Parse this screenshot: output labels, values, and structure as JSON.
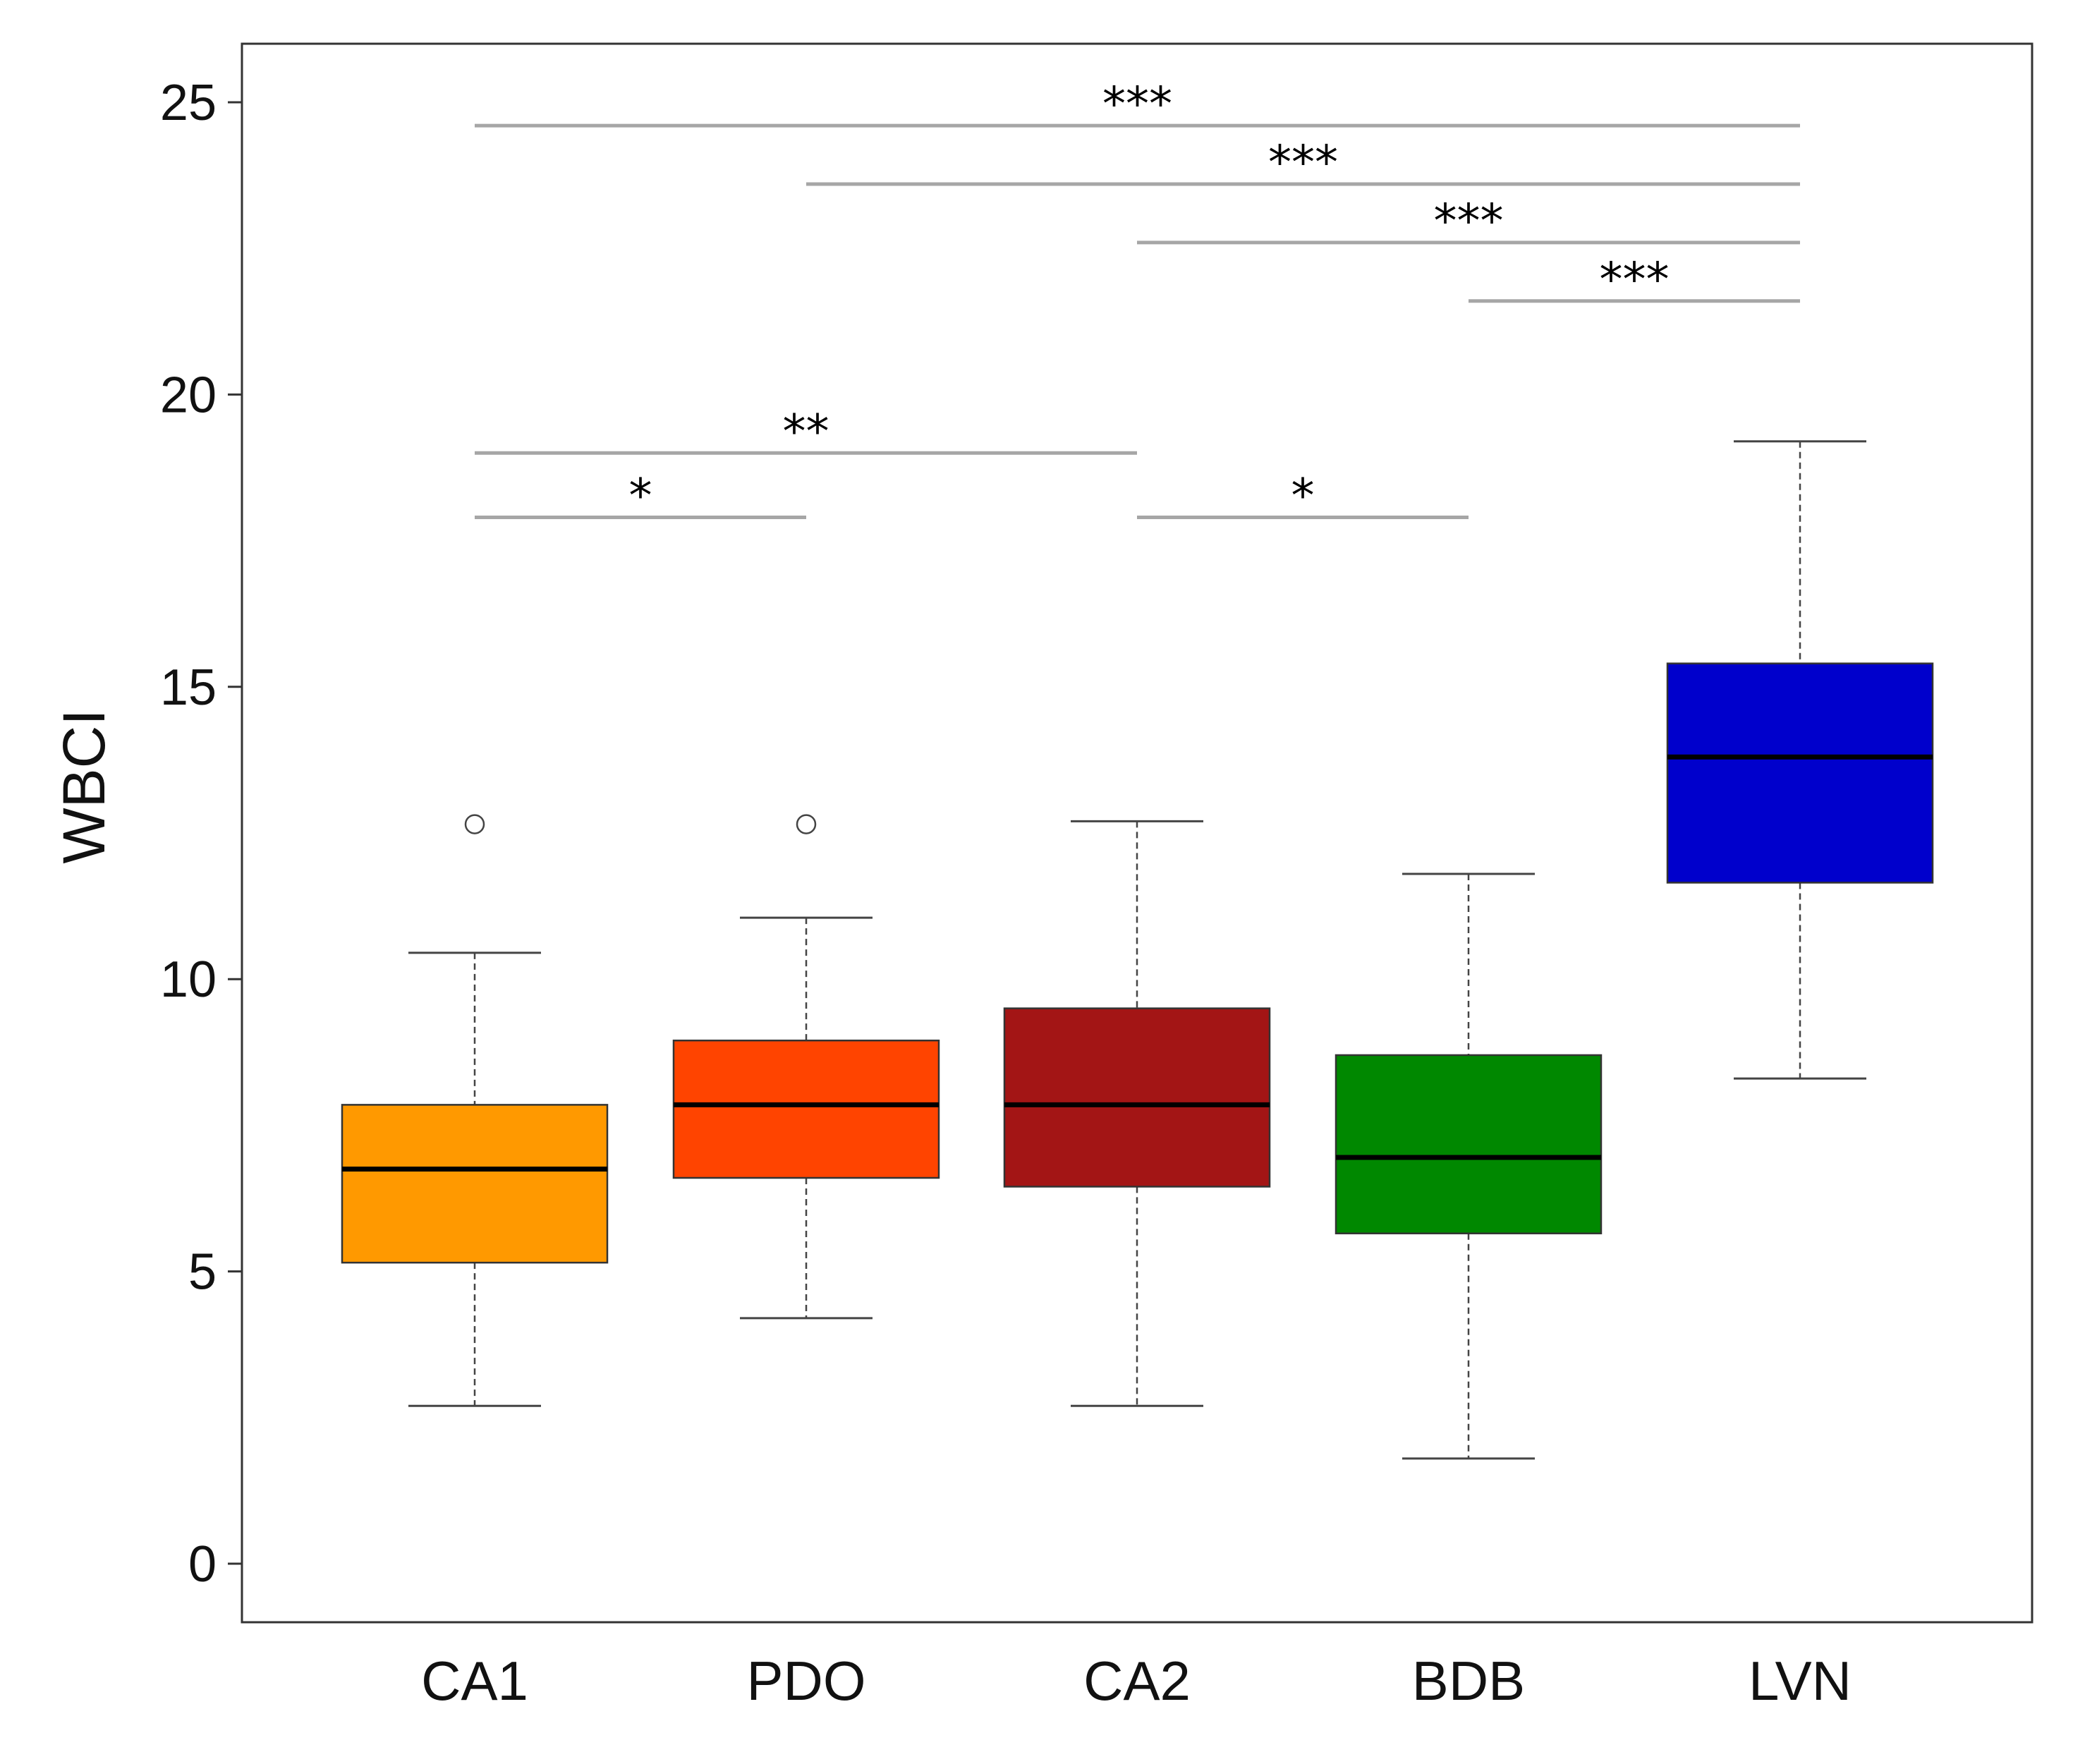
{
  "chart_data": {
    "type": "boxplot",
    "ylabel": "WBCI",
    "xlabel": "",
    "ylim": [
      -1,
      26
    ],
    "yticks": [
      0,
      5,
      10,
      15,
      20,
      25
    ],
    "ytick_labels": [
      "0",
      "5",
      "10",
      "15",
      "20",
      "25"
    ],
    "grid": false,
    "categories": [
      "CA1",
      "PDO",
      "CA2",
      "BDB",
      "LVN"
    ],
    "boxes": [
      {
        "name": "CA1",
        "color": "#FF9900",
        "whisker_low": 2.7,
        "q1": 5.15,
        "median": 6.75,
        "q3": 7.85,
        "whisker_high": 10.45,
        "outliers": [
          12.65
        ]
      },
      {
        "name": "PDO",
        "color": "#FF4400",
        "whisker_low": 4.2,
        "q1": 6.6,
        "median": 7.85,
        "q3": 8.95,
        "whisker_high": 11.05,
        "outliers": [
          12.65
        ]
      },
      {
        "name": "CA2",
        "color": "#A31515",
        "whisker_low": 2.7,
        "q1": 6.45,
        "median": 7.85,
        "q3": 9.5,
        "whisker_high": 12.7,
        "outliers": []
      },
      {
        "name": "BDB",
        "color": "#008800",
        "whisker_low": 1.8,
        "q1": 5.65,
        "median": 6.95,
        "q3": 8.7,
        "whisker_high": 11.8,
        "outliers": []
      },
      {
        "name": "LVN",
        "color": "#0000CC",
        "whisker_low": 8.3,
        "q1": 11.65,
        "median": 13.8,
        "q3": 15.4,
        "whisker_high": 19.2,
        "outliers": []
      }
    ],
    "significance": [
      {
        "from": 0,
        "to": 4,
        "y": 24.6,
        "label": "***"
      },
      {
        "from": 1,
        "to": 4,
        "y": 23.6,
        "label": "***"
      },
      {
        "from": 2,
        "to": 4,
        "y": 22.6,
        "label": "***"
      },
      {
        "from": 3,
        "to": 4,
        "y": 21.6,
        "label": "***"
      },
      {
        "from": 0,
        "to": 2,
        "y": 19.0,
        "label": "**"
      },
      {
        "from": 0,
        "to": 1,
        "y": 17.9,
        "label": "*"
      },
      {
        "from": 2,
        "to": 3,
        "y": 17.9,
        "label": "*"
      }
    ]
  }
}
